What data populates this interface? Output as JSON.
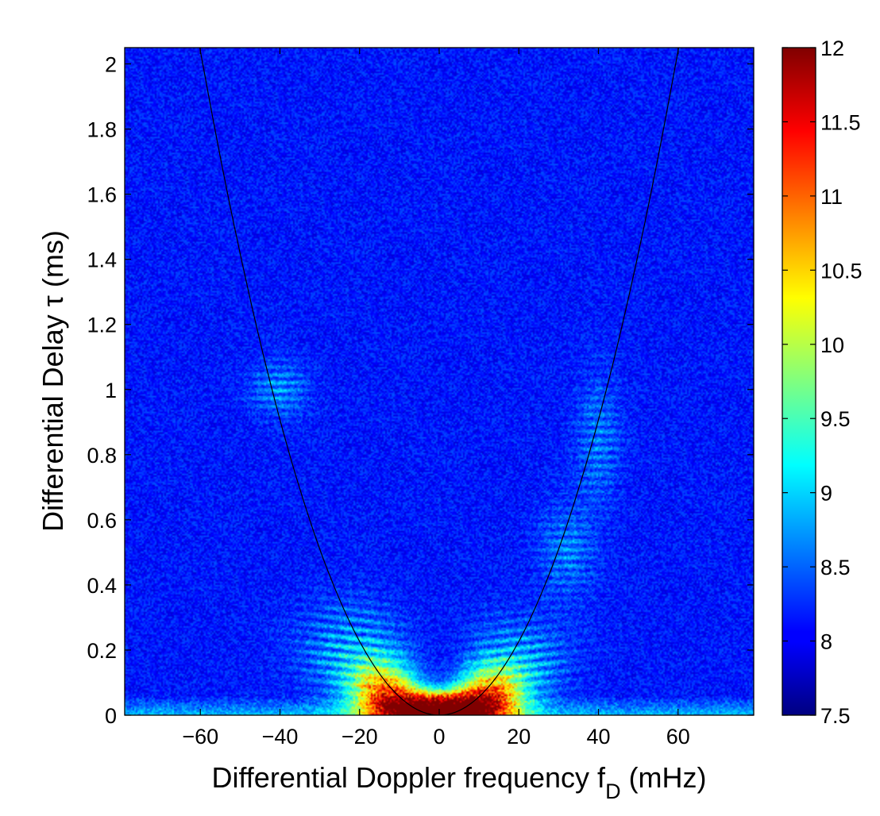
{
  "chart_data": {
    "type": "heatmap",
    "title": "",
    "xlabel": "Differential Doppler frequency f",
    "xlabel_sub": "D",
    "xlabel_unit": " (mHz)",
    "ylabel": "Differential Delay τ (ms)",
    "xlim": [
      -79,
      79
    ],
    "ylim": [
      0,
      2.05
    ],
    "x_ticks": [
      -60,
      -40,
      -20,
      0,
      20,
      40,
      60
    ],
    "x_tick_labels": [
      "−60",
      "−40",
      "−20",
      "0",
      "20",
      "40",
      "60"
    ],
    "y_ticks": [
      0,
      0.2,
      0.4,
      0.6,
      0.8,
      1,
      1.2,
      1.4,
      1.6,
      1.8,
      2
    ],
    "y_tick_labels": [
      "0",
      "0.2",
      "0.4",
      "0.6",
      "0.8",
      "1",
      "1.2",
      "1.4",
      "1.6",
      "1.8",
      "2"
    ],
    "colorbar": {
      "range": [
        7.5,
        12
      ],
      "ticks": [
        7.5,
        8,
        8.5,
        9,
        9.5,
        10,
        10.5,
        11,
        11.5,
        12
      ],
      "tick_labels": [
        "7.5",
        "8",
        "8.5",
        "9",
        "9.5",
        "10",
        "10.5",
        "11",
        "11.5",
        "12"
      ],
      "colormap": "jet"
    },
    "background_level": 8.15,
    "overlay_curve": {
      "type": "parabola",
      "equation": "tau = a * fD^2",
      "a_ms_per_mHz2": 0.000567,
      "color": "#000000"
    },
    "features": [
      {
        "kind": "arclet_group",
        "x_center": -40,
        "tau_center": 1.0,
        "x_range": [
          -48,
          -28
        ],
        "tau_range": [
          0.9,
          1.1
        ],
        "level": 9.0
      },
      {
        "kind": "arclet_group",
        "x_center": -22,
        "tau_center": 0.22,
        "x_range": [
          -42,
          -5
        ],
        "tau_range": [
          0.05,
          0.38
        ],
        "level": 9.4
      },
      {
        "kind": "arclet_group",
        "x_center": 22,
        "tau_center": 0.2,
        "x_range": [
          5,
          40
        ],
        "tau_range": [
          0.05,
          0.32
        ],
        "level": 9.3
      },
      {
        "kind": "arclet_group",
        "x_center": 32,
        "tau_center": 0.5,
        "x_range": [
          22,
          42
        ],
        "tau_range": [
          0.35,
          0.7
        ],
        "level": 8.9
      },
      {
        "kind": "arclet_group",
        "x_center": 40,
        "tau_center": 0.85,
        "x_range": [
          34,
          47
        ],
        "tau_range": [
          0.72,
          1.18
        ],
        "level": 8.8
      },
      {
        "kind": "core",
        "x_center": 0,
        "tau_center": 0.02,
        "x_range": [
          -20,
          20
        ],
        "tau_range": [
          0,
          0.12
        ],
        "level": 11.8
      },
      {
        "kind": "baseline_band",
        "tau_range": [
          0,
          0.06
        ],
        "level": 9.0
      }
    ]
  }
}
